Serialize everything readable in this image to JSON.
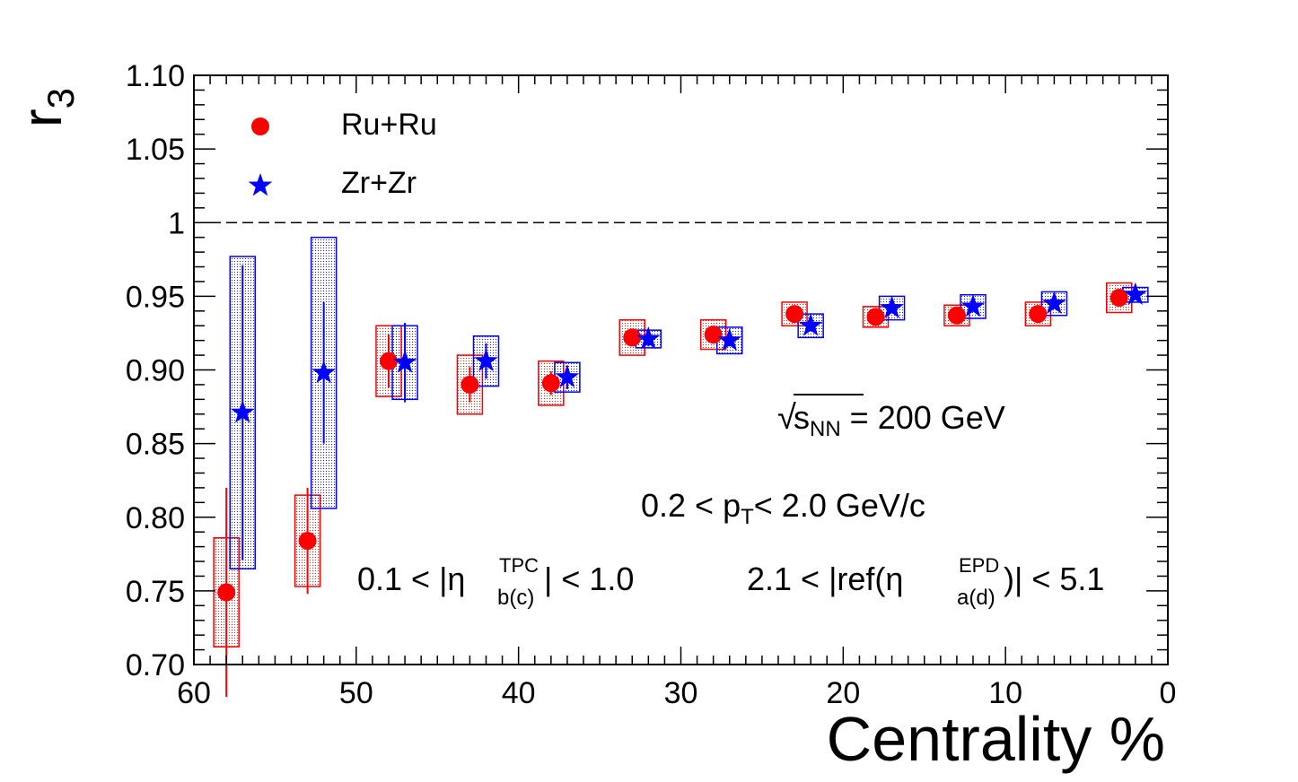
{
  "chart_data": {
    "type": "scatter",
    "title": "",
    "xlabel": "Centrality %",
    "ylabel": "r",
    "ylabel_sub": "3",
    "xlim": [
      60,
      0
    ],
    "ylim": [
      0.7,
      1.1
    ],
    "x_ticks": [
      "60",
      "50",
      "40",
      "30",
      "20",
      "10",
      "0"
    ],
    "y_ticks": [
      "0.70",
      "0.75",
      "0.80",
      "0.85",
      "0.90",
      "0.95",
      "1",
      "1.05",
      "1.10"
    ],
    "reference_line": 1.0,
    "legend_position": "top-left",
    "series": [
      {
        "name": "Ru+Ru",
        "color": "#ff0000",
        "marker": "circle",
        "x": [
          58,
          53,
          48,
          43,
          38,
          33,
          28,
          23,
          18,
          13,
          8,
          3
        ],
        "y": [
          0.749,
          0.784,
          0.906,
          0.89,
          0.891,
          0.922,
          0.924,
          0.938,
          0.936,
          0.937,
          0.938,
          0.949
        ],
        "stat_err": [
          0.071,
          0.036,
          0.018,
          0.012,
          0.008,
          0.005,
          0.004,
          0.003,
          0.003,
          0.003,
          0.003,
          0.002
        ],
        "sys_err": [
          0.037,
          0.031,
          0.024,
          0.02,
          0.015,
          0.012,
          0.01,
          0.008,
          0.007,
          0.007,
          0.008,
          0.01
        ]
      },
      {
        "name": "Zr+Zr",
        "color": "#0000ff",
        "marker": "star",
        "x": [
          57,
          52,
          47,
          42,
          37,
          32,
          27,
          22,
          17,
          12,
          7,
          2
        ],
        "y": [
          0.871,
          0.898,
          0.905,
          0.906,
          0.895,
          0.921,
          0.92,
          0.93,
          0.942,
          0.943,
          0.945,
          0.951
        ],
        "stat_err": [
          0.1,
          0.048,
          0.027,
          0.012,
          0.008,
          0.005,
          0.004,
          0.003,
          0.003,
          0.003,
          0.003,
          0.002
        ],
        "sys_err": [
          0.106,
          0.092,
          0.025,
          0.017,
          0.01,
          0.006,
          0.009,
          0.008,
          0.008,
          0.008,
          0.008,
          0.005
        ]
      }
    ],
    "annotations": {
      "energy_pre": "√",
      "energy_s": "s",
      "energy_sub": "NN",
      "energy_post": " = 200 GeV",
      "pt_pre": "0.2 < p",
      "pt_sub": "T",
      "pt_post": "< 2.0 GeV/c",
      "tpc_pre": "0.1 < |η",
      "tpc_sup": "TPC",
      "tpc_sub": "b(c)",
      "tpc_post": "| < 1.0",
      "epd_pre": "2.1 < |ref(η",
      "epd_sup": "EPD",
      "epd_sub": "a(d)",
      "epd_post": ")| < 5.1"
    }
  }
}
